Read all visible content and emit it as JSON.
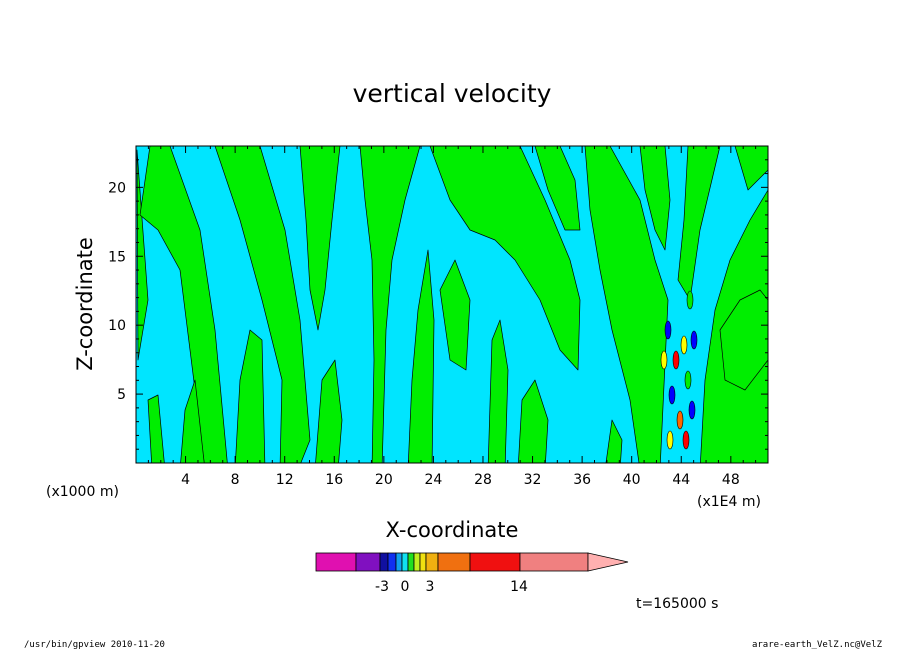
{
  "chart_data": {
    "type": "heatmap",
    "title": "vertical velocity",
    "xlabel": "X-coordinate",
    "ylabel": "Z-coordinate",
    "x_unit_label": "(x1000 m)",
    "x_exponent_label": "(x1E4 m)",
    "xlim": [
      0,
      51
    ],
    "ylim": [
      0,
      23
    ],
    "x_ticks": [
      4,
      8,
      12,
      16,
      20,
      24,
      28,
      32,
      36,
      40,
      44,
      48
    ],
    "y_ticks": [
      5,
      10,
      15,
      20
    ],
    "x_tick_labels": [
      "4",
      "8",
      "12",
      "16",
      "20",
      "24",
      "28",
      "32",
      "36",
      "40",
      "44",
      "48"
    ],
    "y_tick_labels": [
      "5",
      "10",
      "15",
      "20"
    ],
    "colorbar": {
      "colors": [
        "#e010b0",
        "#8010c0",
        "#1010a0",
        "#1030f0",
        "#10a0f0",
        "#10e0f0",
        "#20e020",
        "#c0f020",
        "#f0e010",
        "#f0b010",
        "#f07010",
        "#f01010",
        "#f08080",
        "#ffb0b0"
      ],
      "labels": [
        "-3",
        "0",
        "3",
        "14"
      ]
    },
    "annotations": [
      "t=165000 s"
    ]
  },
  "footer": {
    "left": "/usr/bin/gpview   2010-11-20",
    "right": "arare-earth_VelZ.nc@VelZ"
  },
  "colors": {
    "cyan": "#00e5ff",
    "green": "#00ee00",
    "contour": "#000000"
  }
}
